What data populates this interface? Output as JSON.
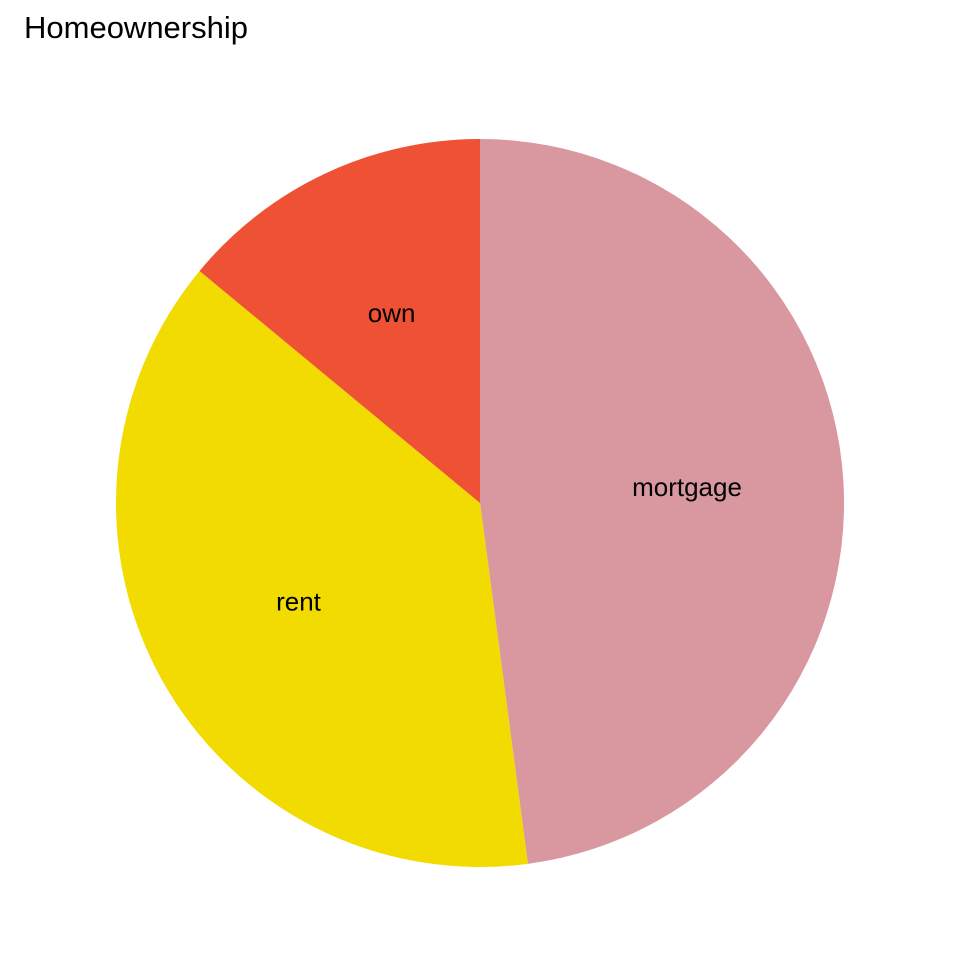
{
  "chart_data": {
    "type": "pie",
    "title": "Homeownership",
    "categories": [
      "mortgage",
      "rent",
      "own"
    ],
    "values": [
      47.9,
      38.1,
      14.0
    ],
    "colors": [
      "#D9989F",
      "#F2DB00",
      "#EF5134"
    ],
    "start": "12 o'clock",
    "direction": "clockwise",
    "legend": "none",
    "labels": "on slices"
  }
}
